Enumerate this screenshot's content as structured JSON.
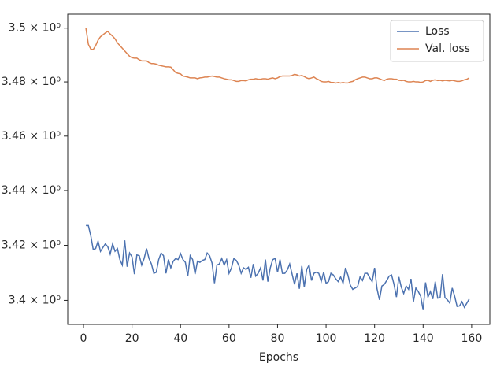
{
  "chart_data": {
    "type": "line",
    "xlabel": "Epochs",
    "x": [
      1,
      2,
      3,
      4,
      5,
      6,
      7,
      8,
      9,
      10,
      11,
      12,
      13,
      14,
      15,
      16,
      17,
      18,
      19,
      20,
      21,
      22,
      23,
      24,
      25,
      26,
      27,
      28,
      29,
      30,
      31,
      32,
      33,
      34,
      35,
      36,
      37,
      38,
      39,
      40,
      41,
      42,
      43,
      44,
      45,
      46,
      47,
      48,
      49,
      50,
      51,
      52,
      53,
      54,
      55,
      56,
      57,
      58,
      59,
      60,
      61,
      62,
      63,
      64,
      65,
      66,
      67,
      68,
      69,
      70,
      71,
      72,
      73,
      74,
      75,
      76,
      77,
      78,
      79,
      80,
      81,
      82,
      83,
      84,
      85,
      86,
      87,
      88,
      89,
      90,
      91,
      92,
      93,
      94,
      95,
      96,
      97,
      98,
      99,
      100,
      101,
      102,
      103,
      104,
      105,
      106,
      107,
      108,
      109,
      110,
      111,
      112,
      113,
      114,
      115,
      116,
      117,
      118,
      119,
      120,
      121,
      122,
      123,
      124,
      125,
      126,
      127,
      128,
      129,
      130,
      131,
      132,
      133,
      134,
      135,
      136,
      137,
      138,
      139,
      140,
      141,
      142,
      143,
      144,
      145,
      146,
      147,
      148,
      149,
      150,
      151,
      152,
      153,
      154,
      155,
      156,
      157,
      158,
      159
    ],
    "series": [
      {
        "name": "Loss",
        "color": "#4c72b0",
        "values": [
          3.4272,
          3.4272,
          3.4235,
          3.4185,
          3.4188,
          3.4215,
          3.4178,
          3.4192,
          3.4205,
          3.4195,
          3.4168,
          3.4205,
          3.4178,
          3.4188,
          3.4148,
          3.4128,
          3.4218,
          3.4122,
          3.4172,
          3.4158,
          3.4095,
          3.4165,
          3.4162,
          3.4128,
          3.4152,
          3.4188,
          3.4152,
          3.4132,
          3.4098,
          3.4102,
          3.4148,
          3.4172,
          3.4162,
          3.4098,
          3.4148,
          3.4118,
          3.4142,
          3.4152,
          3.4148,
          3.417,
          3.4148,
          3.4138,
          3.4088,
          3.4162,
          3.4148,
          3.4095,
          3.4142,
          3.4138,
          3.4145,
          3.4148,
          3.4172,
          3.4162,
          3.4135,
          3.4062,
          3.4128,
          3.4132,
          3.4152,
          3.4128,
          3.4148,
          3.4098,
          3.4118,
          3.4152,
          3.4145,
          3.4128,
          3.4098,
          3.4118,
          3.4112,
          3.412,
          3.4082,
          3.4132,
          3.4088,
          3.4098,
          3.4118,
          3.4072,
          3.4148,
          3.4068,
          3.4118,
          3.4148,
          3.4152,
          3.4102,
          3.4148,
          3.4098,
          3.4098,
          3.411,
          3.4132,
          3.4095,
          3.4058,
          3.4098,
          3.4042,
          3.4125,
          3.4048,
          3.4112,
          3.4128,
          3.4072,
          3.4098,
          3.4102,
          3.4098,
          3.4068,
          3.4102,
          3.4062,
          3.4068,
          3.4098,
          3.4092,
          3.4078,
          3.4068,
          3.4085,
          3.4062,
          3.4118,
          3.4092,
          3.4055,
          3.404,
          3.4045,
          3.405,
          3.4085,
          3.4072,
          3.4098,
          3.4098,
          3.4082,
          3.4068,
          3.4118,
          3.4042,
          3.4002,
          3.4052,
          3.4058,
          3.4072,
          3.4088,
          3.4092,
          3.4058,
          3.4012,
          3.4085,
          3.4048,
          3.4025,
          3.4052,
          3.404,
          3.4078,
          3.3995,
          3.4045,
          3.4032,
          3.4015,
          3.3965,
          3.4065,
          3.4012,
          3.4032,
          3.4005,
          3.4068,
          3.4008,
          3.401,
          3.4095,
          3.401,
          3.4002,
          3.399,
          3.4045,
          3.4015,
          3.3978,
          3.398,
          3.3995,
          3.3975,
          3.399,
          3.4005
        ]
      },
      {
        "name": "Val. loss",
        "color": "#dd8452",
        "values": [
          3.5,
          3.494,
          3.4922,
          3.492,
          3.4935,
          3.4955,
          3.4968,
          3.4975,
          3.4982,
          3.4988,
          3.4978,
          3.497,
          3.496,
          3.4945,
          3.4935,
          3.4925,
          3.4915,
          3.4905,
          3.4895,
          3.489,
          3.4888,
          3.4888,
          3.4882,
          3.4878,
          3.4878,
          3.4878,
          3.4872,
          3.4868,
          3.4868,
          3.4866,
          3.4862,
          3.486,
          3.4858,
          3.4856,
          3.4856,
          3.4855,
          3.4845,
          3.4835,
          3.4832,
          3.483,
          3.4822,
          3.482,
          3.4818,
          3.4815,
          3.4815,
          3.4815,
          3.4812,
          3.4815,
          3.4816,
          3.4818,
          3.4818,
          3.482,
          3.4822,
          3.482,
          3.4818,
          3.4818,
          3.4815,
          3.4812,
          3.481,
          3.4808,
          3.4808,
          3.4805,
          3.4802,
          3.4802,
          3.4805,
          3.4805,
          3.4804,
          3.4808,
          3.481,
          3.481,
          3.4812,
          3.481,
          3.481,
          3.4812,
          3.4812,
          3.481,
          3.4813,
          3.4815,
          3.4812,
          3.4815,
          3.482,
          3.4822,
          3.4822,
          3.4822,
          3.4822,
          3.4824,
          3.4828,
          3.4826,
          3.4822,
          3.4824,
          3.482,
          3.4815,
          3.4812,
          3.4815,
          3.4818,
          3.4812,
          3.4808,
          3.4802,
          3.48,
          3.48,
          3.4802,
          3.4798,
          3.4798,
          3.4796,
          3.4798,
          3.4796,
          3.4798,
          3.4796,
          3.4796,
          3.48,
          3.4802,
          3.4808,
          3.4812,
          3.4815,
          3.4818,
          3.4818,
          3.4815,
          3.4812,
          3.4812,
          3.4815,
          3.4815,
          3.4812,
          3.4808,
          3.4805,
          3.481,
          3.4812,
          3.4812,
          3.481,
          3.481,
          3.4806,
          3.4805,
          3.4806,
          3.4802,
          3.48,
          3.48,
          3.4802,
          3.48,
          3.48,
          3.4798,
          3.48,
          3.4805,
          3.4806,
          3.4802,
          3.4806,
          3.4808,
          3.4805,
          3.4806,
          3.4804,
          3.4806,
          3.4805,
          3.4804,
          3.4806,
          3.4804,
          3.4802,
          3.4802,
          3.4804,
          3.4808,
          3.481,
          3.4815
        ]
      }
    ],
    "xlim": [
      -6.5,
      167.5
    ],
    "xticks": [
      0,
      20,
      40,
      60,
      80,
      100,
      120,
      140,
      160
    ],
    "ylim": [
      3.3913,
      3.5052
    ],
    "yscale": "log",
    "yticks": [
      {
        "value": 3.4,
        "label": "3.4 × 10⁰"
      },
      {
        "value": 3.42,
        "label": "3.42 × 10⁰"
      },
      {
        "value": 3.44,
        "label": "3.44 × 10⁰"
      },
      {
        "value": 3.46,
        "label": "3.46 × 10⁰"
      },
      {
        "value": 3.48,
        "label": "3.48 × 10⁰"
      },
      {
        "value": 3.5,
        "label": "3.5 × 10⁰"
      }
    ],
    "legend": "upper right"
  }
}
